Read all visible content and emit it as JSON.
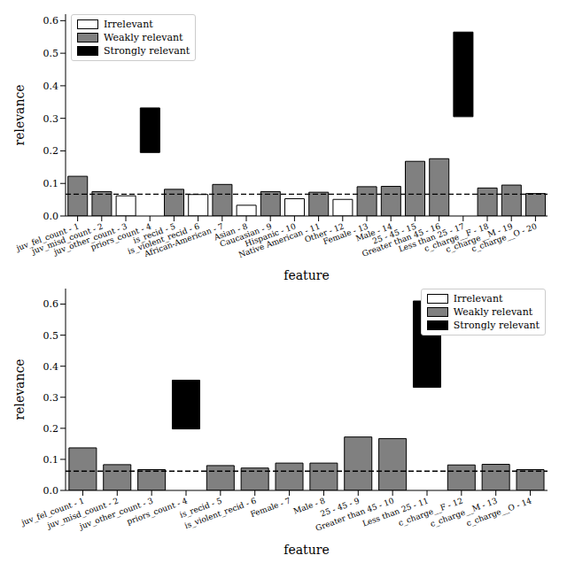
{
  "chart_data": [
    {
      "type": "bar",
      "x_label": "feature",
      "y_label": "relevance",
      "legend": "upper left",
      "categories": [
        "juv_fel_count - 1",
        "juv_misd_count - 2",
        "juv_other_count - 3",
        "priors_count - 4",
        "is_recid - 5",
        "is_violent_recid - 6",
        "African-American - 7",
        "Asian - 8",
        "Caucasian - 9",
        "Hispanic - 10",
        "Native American - 11",
        "Other - 12",
        "Female - 13",
        "Male - 14",
        "25 - 45 - 15",
        "Greater than 45 - 16",
        "Less than 25 - 17",
        "c_charge__F - 18",
        "c_charge__M - 19",
        "c_charge__O - 20"
      ],
      "series": [
        {
          "name": "Irrelevant",
          "color": "#ffffff",
          "values": [
            null,
            null,
            0.062,
            null,
            null,
            0.066,
            null,
            0.033,
            null,
            0.053,
            null,
            0.051,
            null,
            null,
            null,
            null,
            null,
            null,
            null,
            null
          ]
        },
        {
          "name": "Weakly relevant",
          "color": "#808080",
          "values": [
            0.122,
            0.075,
            null,
            null,
            0.082,
            null,
            0.097,
            null,
            0.075,
            null,
            0.073,
            null,
            0.09,
            0.091,
            0.168,
            0.176,
            null,
            0.086,
            0.095,
            0.069
          ]
        },
        {
          "name": "Strongly relevant",
          "color": "#000000",
          "values": [
            null,
            null,
            null,
            [
              0.195,
              0.332
            ],
            null,
            null,
            null,
            null,
            null,
            null,
            null,
            null,
            null,
            null,
            null,
            null,
            [
              0.305,
              0.565
            ],
            null,
            null,
            null
          ]
        }
      ],
      "threshold": 0.067,
      "ylim": [
        0,
        0.62
      ],
      "yticks": [
        {
          "value": 0,
          "label": "0.0"
        },
        0.1,
        0.2,
        0.3,
        0.4,
        0.5,
        0.6
      ]
    },
    {
      "type": "bar",
      "x_label": "feature",
      "y_label": "relevance",
      "legend": "upper right",
      "categories": [
        "juv_fel_count - 1",
        "juv_misd_count - 2",
        "juv_other_count - 3",
        "priors_count - 4",
        "is_recid - 5",
        "is_violent_recid - 6",
        "Female - 7",
        "Male - 8",
        "25 - 45 - 9",
        "Greater than 45 - 10",
        "Less than 25 - 11",
        "c_charge__F - 12",
        "c_charge__M - 13",
        "c_charge__O - 14"
      ],
      "series": [
        {
          "name": "Irrelevant",
          "color": "#ffffff",
          "values": [
            null,
            null,
            null,
            null,
            null,
            null,
            null,
            null,
            null,
            null,
            null,
            null,
            null,
            null
          ]
        },
        {
          "name": "Weakly relevant",
          "color": "#808080",
          "values": [
            0.137,
            0.083,
            0.067,
            null,
            0.08,
            0.072,
            0.088,
            0.088,
            0.172,
            0.167,
            null,
            0.082,
            0.084,
            0.067
          ]
        },
        {
          "name": "Strongly relevant",
          "color": "#000000",
          "values": [
            null,
            null,
            null,
            [
              0.198,
              0.355
            ],
            null,
            null,
            null,
            null,
            null,
            null,
            [
              0.332,
              0.61
            ],
            null,
            null,
            null
          ]
        }
      ],
      "threshold": 0.062,
      "ylim": [
        0,
        0.65
      ],
      "yticks": [
        {
          "value": 0,
          "label": "0.0"
        },
        0.1,
        0.2,
        0.3,
        0.4,
        0.5,
        0.6
      ]
    }
  ]
}
